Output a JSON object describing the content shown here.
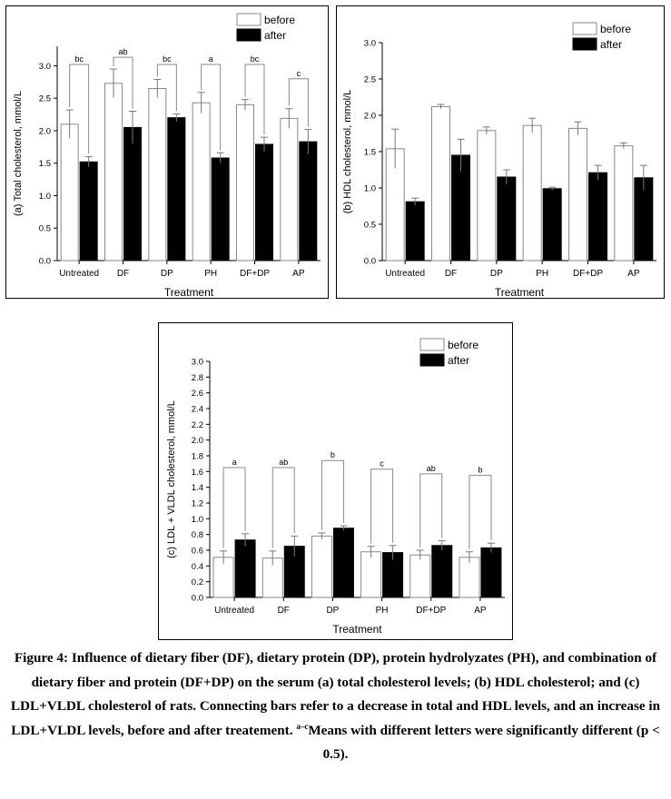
{
  "figure": {
    "caption_main": "Figure 4: Influence of dietary fiber (DF), dietary protein (DP), protein hydrolyzates (PH), and combination of dietary fiber and protein (DF+DP) on the serum (a)  total cholesterol levels; (b) HDL cholesterol; and (c) LDL+VLDL cholesterol of rats. Connecting bars refer to a decrease in total and HDL levels, and an increase in LDL+VLDL levels, before and after treatement.",
    "caption_sup": "a–c",
    "caption_tail": "Means with different letters were significantly different (p < 0.5)."
  },
  "chart_data": [
    {
      "type": "bar",
      "xlabel": "Treatment",
      "ylabel": "(a) Total cholesterol, mmol/L",
      "categories": [
        "Untreated",
        "DF",
        "DP",
        "PH",
        "DF+DP",
        "AP"
      ],
      "ylim": [
        0,
        3.3
      ],
      "yticks": [
        "0.0",
        "0.5",
        "1.0",
        "1.5",
        "2.0",
        "2.5",
        "3.0"
      ],
      "legend": [
        "before",
        "after"
      ],
      "legend_position": "top-right",
      "series": [
        {
          "name": "before",
          "values": [
            2.1,
            2.73,
            2.65,
            2.43,
            2.4,
            2.19
          ],
          "errors": [
            0.22,
            0.22,
            0.14,
            0.16,
            0.08,
            0.15
          ]
        },
        {
          "name": "after",
          "values": [
            1.52,
            2.05,
            2.2,
            1.58,
            1.79,
            1.83
          ],
          "errors": [
            0.08,
            0.25,
            0.06,
            0.08,
            0.11,
            0.19
          ]
        }
      ],
      "significance_letters": [
        "bc",
        "ab",
        "bc",
        "a",
        "bc",
        "c"
      ],
      "bracket_heights": [
        3.02,
        3.13,
        3.02,
        3.02,
        3.02,
        2.8
      ],
      "colors": {
        "before": "#ffffff",
        "after": "#000000"
      }
    },
    {
      "type": "bar",
      "xlabel": "Treatment",
      "ylabel": "(b) HDL cholesterol, mmol/L",
      "categories": [
        "Untreated",
        "DF",
        "DP",
        "PH",
        "DF+DP",
        "AP"
      ],
      "ylim": [
        0,
        3.0
      ],
      "yticks": [
        "0.0",
        "0.5",
        "1.0",
        "1.5",
        "2.0",
        "2.5",
        "3.0"
      ],
      "legend": [
        "before",
        "after"
      ],
      "legend_position": "top-right",
      "series": [
        {
          "name": "before",
          "values": [
            1.54,
            2.12,
            1.79,
            1.86,
            1.82,
            1.58
          ],
          "errors": [
            0.27,
            0.03,
            0.05,
            0.1,
            0.09,
            0.04
          ]
        },
        {
          "name": "after",
          "values": [
            0.81,
            1.45,
            1.15,
            0.99,
            1.21,
            1.14
          ],
          "errors": [
            0.05,
            0.22,
            0.1,
            0.02,
            0.1,
            0.17
          ]
        }
      ],
      "colors": {
        "before": "#ffffff",
        "after": "#000000"
      }
    },
    {
      "type": "bar",
      "xlabel": "Treatment",
      "ylabel": "(c) LDL + VLDL cholesterol, mmol/L",
      "categories": [
        "Untreated",
        "DF",
        "DP",
        "PH",
        "DF+DP",
        "AP"
      ],
      "ylim": [
        0,
        3.0
      ],
      "yticks": [
        "0.0",
        "0.2",
        "0.4",
        "0.6",
        "0.8",
        "1.0",
        "1.2",
        "1.4",
        "1.6",
        "1.8",
        "2.0",
        "2.2",
        "2.4",
        "2.6",
        "2.8",
        "3.0"
      ],
      "legend": [
        "before",
        "after"
      ],
      "legend_position": "top-right",
      "series": [
        {
          "name": "before",
          "values": [
            0.51,
            0.5,
            0.78,
            0.58,
            0.54,
            0.51
          ],
          "errors": [
            0.08,
            0.09,
            0.04,
            0.07,
            0.06,
            0.07
          ]
        },
        {
          "name": "after",
          "values": [
            0.73,
            0.65,
            0.88,
            0.57,
            0.66,
            0.63
          ],
          "errors": [
            0.08,
            0.13,
            0.03,
            0.09,
            0.06,
            0.06
          ]
        }
      ],
      "significance_letters": [
        "a",
        "ab",
        "b",
        "c",
        "ab",
        "b"
      ],
      "bracket_heights": [
        1.65,
        1.65,
        1.74,
        1.63,
        1.57,
        1.55
      ],
      "colors": {
        "before": "#ffffff",
        "after": "#000000"
      }
    }
  ]
}
